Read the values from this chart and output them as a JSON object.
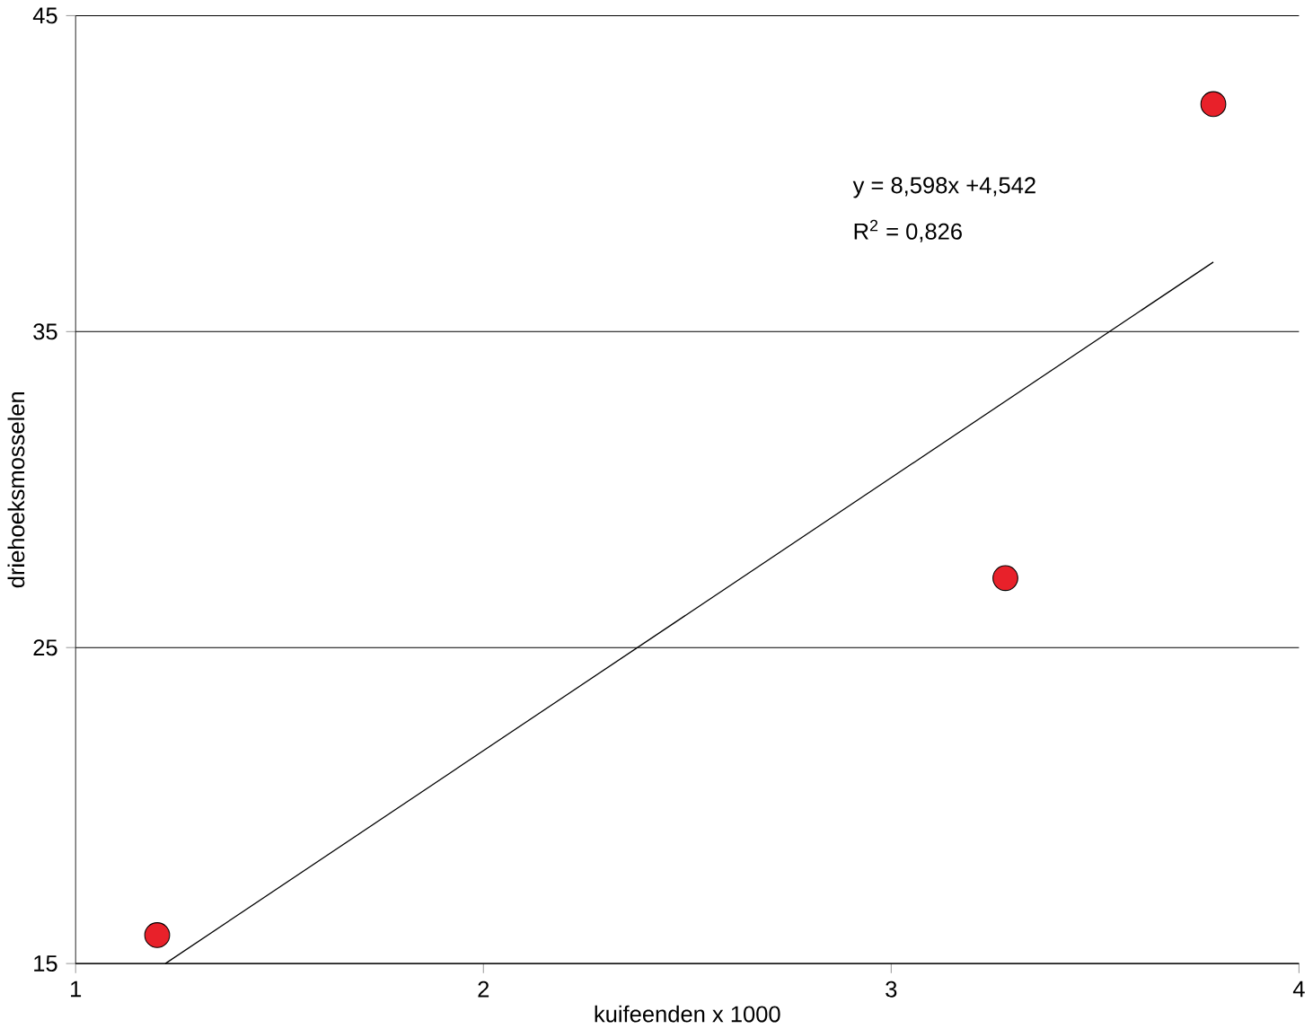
{
  "chart_data": {
    "type": "scatter",
    "xlabel": "kuifeenden x 1000",
    "ylabel": "driehoeksmosselen",
    "series": [
      {
        "x": [
          1.2,
          3.28,
          3.79
        ],
        "values": [
          15.9,
          27.2,
          42.2
        ],
        "color": "#e8212a",
        "marker": "circle"
      },
      {
        "type": "line",
        "x": [
          1.22,
          3.79
        ],
        "values": [
          15.0,
          37.2
        ],
        "color": "#000000",
        "marker": "none"
      }
    ],
    "xlim": [
      1,
      4
    ],
    "ylim": [
      15,
      45
    ],
    "xticks": [
      1,
      2,
      3,
      4
    ],
    "yticks": [
      15,
      25,
      35,
      45
    ],
    "grid": "y",
    "annotations": [
      "y = 8,598x +4,542",
      "R$^{2}$ = 0,826"
    ]
  }
}
